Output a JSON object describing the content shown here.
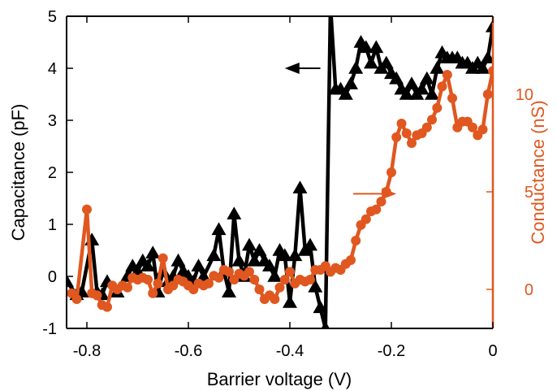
{
  "chart_data": {
    "type": "line",
    "title": "",
    "xlabel": "Barrier voltage (V)",
    "ylabel_left": "Capacitance (pF)",
    "ylabel_right": "Conductance (nS)",
    "xlim": [
      -0.84,
      0.0
    ],
    "ylim_left": [
      -1,
      5
    ],
    "ylim_right": [
      -2,
      14
    ],
    "x_ticks": [
      {
        "value": -0.8,
        "label": "-0.8"
      },
      {
        "value": -0.6,
        "label": "-0.6"
      },
      {
        "value": -0.4,
        "label": "-0.4"
      },
      {
        "value": -0.2,
        "label": "-0.2"
      },
      {
        "value": 0.0,
        "label": "0"
      }
    ],
    "y_left_ticks": [
      {
        "value": -1,
        "label": "-1"
      },
      {
        "value": 0,
        "label": "0"
      },
      {
        "value": 1,
        "label": "1"
      },
      {
        "value": 2,
        "label": "2"
      },
      {
        "value": 3,
        "label": "3"
      },
      {
        "value": 4,
        "label": "4"
      },
      {
        "value": 5,
        "label": "5"
      }
    ],
    "y_right_ticks": [
      {
        "value": 0,
        "label": "0"
      },
      {
        "value": 5,
        "label": "5"
      },
      {
        "value": 10,
        "label": "10"
      }
    ],
    "colors": {
      "capacitance": "#000000",
      "conductance": "#e0571f",
      "axis": "#000000"
    },
    "series": [
      {
        "key": "capacitance",
        "axis": "left",
        "marker": "triangle",
        "x": [
          -0.84,
          -0.82,
          -0.81,
          -0.79,
          -0.78,
          -0.77,
          -0.76,
          -0.74,
          -0.72,
          -0.71,
          -0.7,
          -0.69,
          -0.68,
          -0.67,
          -0.66,
          -0.65,
          -0.64,
          -0.63,
          -0.62,
          -0.61,
          -0.6,
          -0.59,
          -0.58,
          -0.57,
          -0.55,
          -0.54,
          -0.53,
          -0.52,
          -0.51,
          -0.5,
          -0.49,
          -0.48,
          -0.47,
          -0.46,
          -0.45,
          -0.44,
          -0.43,
          -0.42,
          -0.41,
          -0.4,
          -0.39,
          -0.38,
          -0.37,
          -0.36,
          -0.35,
          -0.34,
          -0.33,
          -0.32,
          -0.31,
          -0.3,
          -0.29,
          -0.28,
          -0.27,
          -0.26,
          -0.25,
          -0.24,
          -0.23,
          -0.22,
          -0.21,
          -0.2,
          -0.19,
          -0.18,
          -0.17,
          -0.16,
          -0.15,
          -0.14,
          -0.13,
          -0.12,
          -0.11,
          -0.1,
          -0.09,
          -0.08,
          -0.07,
          -0.06,
          -0.05,
          -0.04,
          -0.03,
          -0.02,
          -0.01,
          0.0
        ],
        "y": [
          -0.1,
          -0.35,
          -0.3,
          0.7,
          -0.3,
          -0.35,
          -0.1,
          -0.3,
          0.0,
          0.2,
          0.1,
          0.3,
          0.2,
          0.45,
          -0.3,
          0.1,
          -0.1,
          0.0,
          0.3,
          0.1,
          0.0,
          -0.1,
          0.2,
          0.0,
          0.4,
          0.9,
          0.1,
          -0.3,
          1.2,
          0.3,
          0.0,
          0.6,
          0.3,
          0.5,
          0.3,
          0.2,
          0.0,
          0.5,
          0.4,
          -0.5,
          0.4,
          1.7,
          0.5,
          0.6,
          -0.2,
          -0.6,
          -1.0,
          5.2,
          3.6,
          3.6,
          3.5,
          3.7,
          4.0,
          4.5,
          4.4,
          4.1,
          4.4,
          4.0,
          4.1,
          3.9,
          3.8,
          3.6,
          3.5,
          3.7,
          3.5,
          3.6,
          3.8,
          3.5,
          4.0,
          4.3,
          4.2,
          4.2,
          4.2,
          4.1,
          4.1,
          4.0,
          4.1,
          4.0,
          4.2,
          4.8
        ]
      },
      {
        "key": "conductance",
        "axis": "right",
        "marker": "circle",
        "x": [
          -0.83,
          -0.82,
          -0.8,
          -0.79,
          -0.78,
          -0.77,
          -0.76,
          -0.75,
          -0.74,
          -0.73,
          -0.72,
          -0.71,
          -0.7,
          -0.69,
          -0.68,
          -0.67,
          -0.66,
          -0.65,
          -0.64,
          -0.63,
          -0.62,
          -0.61,
          -0.6,
          -0.59,
          -0.58,
          -0.57,
          -0.56,
          -0.55,
          -0.54,
          -0.53,
          -0.52,
          -0.51,
          -0.5,
          -0.49,
          -0.48,
          -0.47,
          -0.46,
          -0.45,
          -0.44,
          -0.43,
          -0.42,
          -0.41,
          -0.4,
          -0.39,
          -0.38,
          -0.37,
          -0.36,
          -0.35,
          -0.34,
          -0.33,
          -0.32,
          -0.31,
          -0.3,
          -0.29,
          -0.28,
          -0.27,
          -0.26,
          -0.25,
          -0.24,
          -0.23,
          -0.22,
          -0.21,
          -0.2,
          -0.19,
          -0.18,
          -0.17,
          -0.16,
          -0.15,
          -0.14,
          -0.13,
          -0.12,
          -0.11,
          -0.1,
          -0.09,
          -0.08,
          -0.07,
          -0.06,
          -0.05,
          -0.04,
          -0.03,
          -0.02,
          -0.01,
          0.0
        ],
        "y": [
          -0.2,
          -0.5,
          4.1,
          -0.2,
          -0.3,
          -0.8,
          -0.9,
          0.2,
          0.0,
          0.2,
          0.1,
          0.6,
          0.5,
          0.6,
          0.5,
          -0.2,
          0.3,
          1.6,
          0.0,
          0.2,
          0.5,
          0.4,
          0.2,
          0.0,
          0.3,
          0.2,
          0.3,
          0.7,
          0.6,
          1.0,
          0.9,
          0.5,
          0.8,
          0.7,
          0.9,
          0.5,
          0.0,
          -0.5,
          -0.3,
          -0.5,
          0.1,
          0.5,
          0.9,
          0.3,
          0.5,
          0.4,
          0.5,
          1.0,
          1.0,
          1.2,
          0.9,
          1.1,
          1.0,
          1.3,
          1.5,
          2.5,
          3.3,
          3.6,
          4.0,
          4.1,
          4.5,
          5.0,
          6.0,
          7.8,
          8.5,
          8.0,
          7.5,
          7.9,
          8.0,
          8.3,
          8.7,
          9.3,
          10.4,
          11.0,
          9.8,
          8.3,
          8.6,
          8.6,
          8.3,
          7.9,
          8.2,
          10.0,
          11.2
        ]
      }
    ],
    "annotations": [
      {
        "type": "arrow",
        "direction": "left",
        "series": "capacitance"
      },
      {
        "type": "arrow",
        "direction": "right",
        "series": "conductance"
      }
    ]
  }
}
